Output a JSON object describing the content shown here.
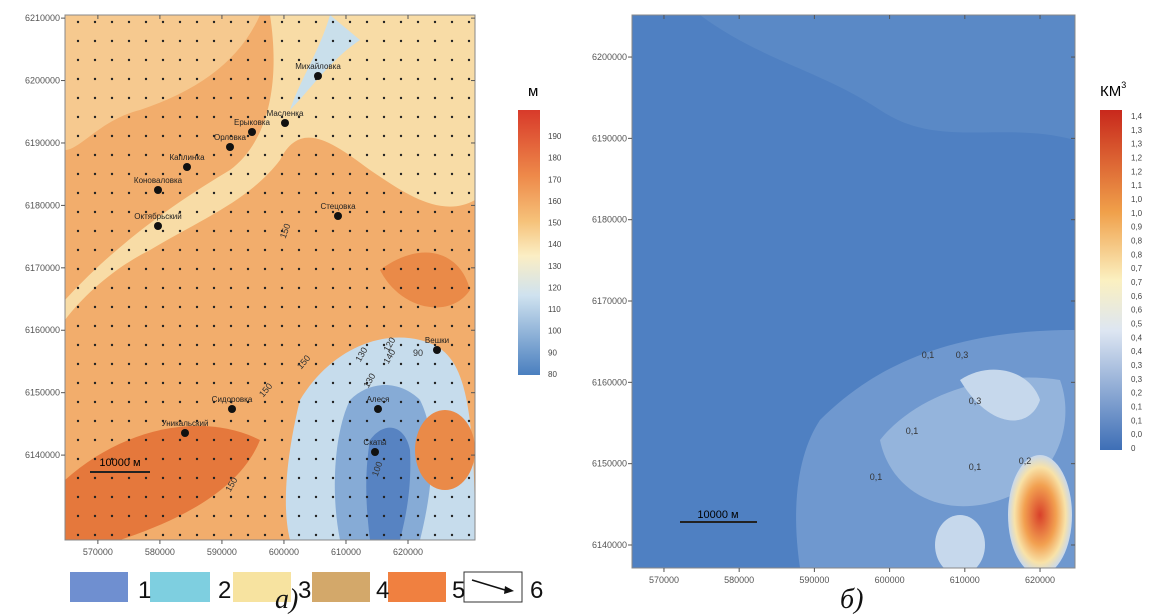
{
  "panel_a": {
    "label": "а)",
    "unit": "м",
    "xlim": [
      564700,
      630800
    ],
    "ylim": [
      6126400,
      6210500
    ],
    "xticks": [
      570000,
      580000,
      590000,
      600000,
      610000,
      620000
    ],
    "yticks": [
      6140000,
      6150000,
      6160000,
      6170000,
      6180000,
      6190000,
      6200000,
      6210000
    ],
    "colorbar": [
      190,
      180,
      170,
      160,
      150,
      140,
      130,
      120,
      110,
      100,
      90,
      80
    ],
    "places": [
      "Михайловка",
      "Масленка",
      "Ерыковка",
      "Орловка",
      "Каплинка",
      "Коноваловка",
      "Октябрьский",
      "Стецовка",
      "Вешки",
      "Сидоровка",
      "Уникальский",
      "Алеся",
      "Скаты"
    ],
    "contours": [
      150,
      120,
      140,
      130,
      150,
      150,
      130,
      90,
      150,
      100
    ],
    "scale": "10000 м"
  },
  "panel_b": {
    "label": "б)",
    "unit": "КМ",
    "unit_exponent": "3",
    "xlim": [
      565750,
      624650
    ],
    "ylim": [
      6137170,
      6205170
    ],
    "xticks": [
      570000,
      580000,
      590000,
      600000,
      610000,
      620000
    ],
    "yticks": [
      6140000,
      6150000,
      6160000,
      6170000,
      6180000,
      6190000,
      6200000
    ],
    "colorbar": [
      "1,4",
      "1,3",
      "1,3",
      "1,2",
      "1,2",
      "1,1",
      "1,0",
      "1,0",
      "0,9",
      "0,8",
      "0,8",
      "0,7",
      "0,7",
      "0,6",
      "0,6",
      "0,5",
      "0,4",
      "0,4",
      "0,3",
      "0,3",
      "0,2",
      "0,1",
      "0,1",
      "0,0",
      "0"
    ],
    "contours": [
      "0,1",
      "0,3",
      "0,3",
      "0,1",
      "0,1",
      "0,1",
      "0,2"
    ],
    "scale": "10000 м"
  },
  "legend": [
    1,
    2,
    3,
    4,
    5,
    6
  ]
}
